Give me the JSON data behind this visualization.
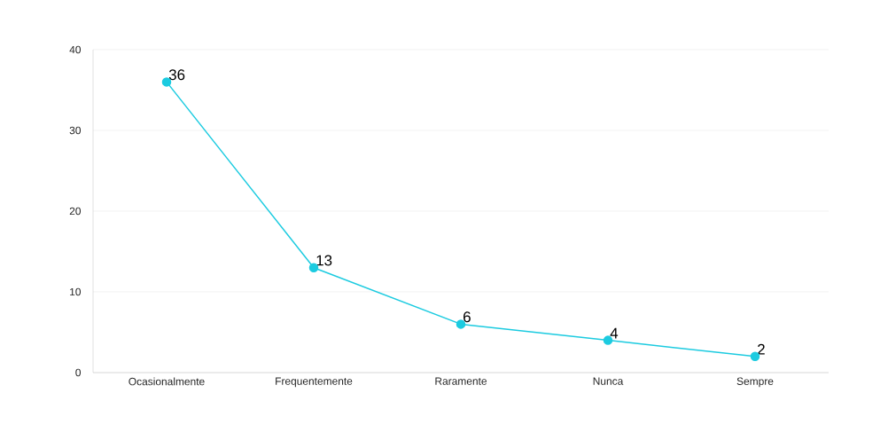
{
  "chart_data": {
    "type": "line",
    "categories": [
      "Ocasionalmente",
      "Frequentemente",
      "Raramente",
      "Nunca",
      "Sempre"
    ],
    "values": [
      36,
      13,
      6,
      4,
      2
    ],
    "color": "#1ccbe0",
    "marker": "circle",
    "line_style": "solid",
    "data_labels": true,
    "grid": "y",
    "ylim": [
      0,
      40
    ],
    "yticks": [
      0,
      10,
      20,
      30,
      40
    ]
  }
}
